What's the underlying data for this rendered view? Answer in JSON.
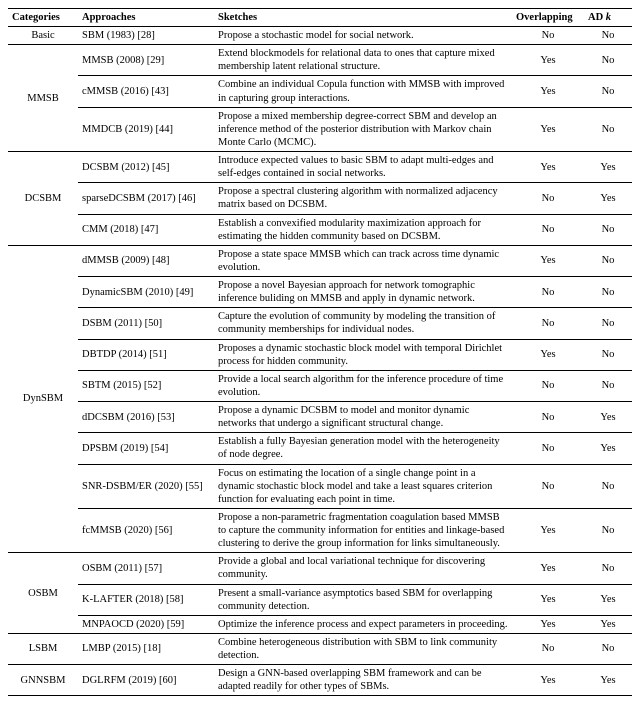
{
  "header": {
    "categories": "Categories",
    "approaches": "Approaches",
    "sketches": "Sketches",
    "overlapping": "Overlapping",
    "adk": "AD k"
  },
  "groups": [
    {
      "category": "Basic",
      "rows": [
        {
          "approach": "SBM (1983) [28]",
          "sketch": "Propose a stochastic model for social network.",
          "overlap": "No",
          "adk": "No"
        }
      ]
    },
    {
      "category": "MMSB",
      "rows": [
        {
          "approach": "MMSB (2008) [29]",
          "sketch": "Extend blockmodels for relational data to ones that capture mixed membership latent relational structure.",
          "overlap": "Yes",
          "adk": "No"
        },
        {
          "approach": "cMMSB (2016) [43]",
          "sketch": "Combine an individual Copula function with MMSB with improved in capturing group interactions.",
          "overlap": "Yes",
          "adk": "No"
        },
        {
          "approach": "MMDCB (2019) [44]",
          "sketch": "Propose a mixed membership degree-correct SBM and develop an inference method of the posterior distribution with Markov chain Monte Carlo (MCMC).",
          "overlap": "Yes",
          "adk": "No"
        }
      ]
    },
    {
      "category": "DCSBM",
      "rows": [
        {
          "approach": "DCSBM (2012) [45]",
          "sketch": "Introduce expected values to basic SBM to adapt multi-edges and self-edges contained in social networks.",
          "overlap": "Yes",
          "adk": "Yes"
        },
        {
          "approach": "sparseDCSBM (2017) [46]",
          "sketch": "Propose a spectral clustering algorithm with normalized adjacency matrix based on DCSBM.",
          "overlap": "No",
          "adk": "Yes"
        },
        {
          "approach": "CMM (2018) [47]",
          "sketch": "Establish a convexified modularity maximization approach for estimating the hidden community based on DCSBM.",
          "overlap": "No",
          "adk": "No"
        }
      ]
    },
    {
      "category": "DynSBM",
      "rows": [
        {
          "approach": "dMMSB (2009) [48]",
          "sketch": "Propose a state space MMSB which can track across time dynamic evolution.",
          "overlap": "Yes",
          "adk": "No"
        },
        {
          "approach": "DynamicSBM (2010) [49]",
          "sketch": "Propose a novel Bayesian approach for network tomographic inference buliding on MMSB and apply in dynamic network.",
          "overlap": "No",
          "adk": "No"
        },
        {
          "approach": "DSBM (2011) [50]",
          "sketch": "Capture the evolution of community by modeling the transition of community memberships for individual nodes.",
          "overlap": "No",
          "adk": "No"
        },
        {
          "approach": "DBTDP (2014) [51]",
          "sketch": "Proposes a dynamic stochastic block model with temporal Dirichlet process for hidden community.",
          "overlap": "Yes",
          "adk": "No"
        },
        {
          "approach": "SBTM (2015) [52]",
          "sketch": "Provide a local search algorithm for the inference procedure of time evolution.",
          "overlap": "No",
          "adk": "No"
        },
        {
          "approach": "dDCSBM (2016) [53]",
          "sketch": "Propose a dynamic DCSBM to model and monitor dynamic networks that undergo a significant structural change.",
          "overlap": "No",
          "adk": "Yes"
        },
        {
          "approach": "DPSBM (2019) [54]",
          "sketch": "Establish a fully Bayesian generation model with the heterogeneity of node degree.",
          "overlap": "No",
          "adk": "Yes"
        },
        {
          "approach": "SNR-DSBM/ER (2020) [55]",
          "sketch": "Focus on estimating the location of a single change point in a dynamic stochastic block model and take a least squares criterion function for evaluating each point in time.",
          "overlap": "No",
          "adk": "No"
        },
        {
          "approach": "fcMMSB (2020) [56]",
          "sketch": "Propose a non-parametric fragmentation coagulation based MMSB to capture the community information for entities and linkage-based clustering to derive the group information for links simultaneously.",
          "overlap": "Yes",
          "adk": "No"
        }
      ]
    },
    {
      "category": "OSBM",
      "rows": [
        {
          "approach": "OSBM (2011) [57]",
          "sketch": "Provide a global and local variational technique for discovering community.",
          "overlap": "Yes",
          "adk": "No"
        },
        {
          "approach": "K-LAFTER (2018) [58]",
          "sketch": "Present a small-variance asymptotics based SBM for overlapping community detection.",
          "overlap": "Yes",
          "adk": "Yes"
        },
        {
          "approach": "MNPAOCD (2020) [59]",
          "sketch": "Optimize the inference process and expect parameters in proceeding.",
          "overlap": "Yes",
          "adk": "Yes"
        }
      ]
    },
    {
      "category": "LSBM",
      "rows": [
        {
          "approach": "LMBP (2015) [18]",
          "sketch": "Combine heterogeneous distribution with SBM to link community detection.",
          "overlap": "No",
          "adk": "No"
        }
      ]
    },
    {
      "category": "GNNSBM",
      "rows": [
        {
          "approach": "DGLRFM (2019) [60]",
          "sketch": "Design a GNN-based overlapping SBM framework and can be adapted readily for other types of SBMs.",
          "overlap": "Yes",
          "adk": "Yes"
        }
      ]
    }
  ]
}
